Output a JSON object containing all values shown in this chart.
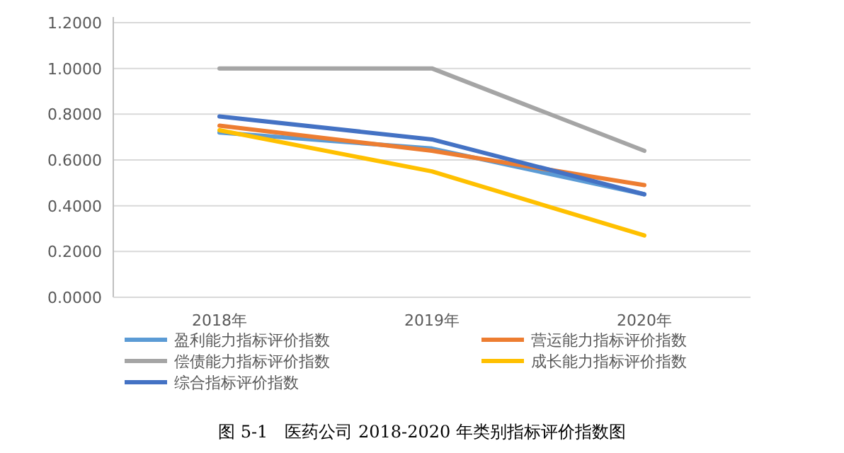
{
  "chart_data": {
    "type": "line",
    "categories": [
      "2018年",
      "2019年",
      "2020年"
    ],
    "series": [
      {
        "name": "盈利能力指标评价指数",
        "color": "#5b9bd5",
        "values": [
          0.72,
          0.65,
          0.45
        ]
      },
      {
        "name": "营运能力指标评价指数",
        "color": "#ed7d31",
        "values": [
          0.75,
          0.64,
          0.49
        ]
      },
      {
        "name": "偿债能力指标评价指数",
        "color": "#a5a5a5",
        "values": [
          1.0,
          1.0,
          0.64
        ]
      },
      {
        "name": "成长能力指标评价指数",
        "color": "#ffc000",
        "values": [
          0.73,
          0.55,
          0.27
        ]
      },
      {
        "name": "综合指标评价指数",
        "color": "#4472c4",
        "values": [
          0.79,
          0.69,
          0.45
        ]
      }
    ],
    "ylim": [
      0,
      1.2
    ],
    "yticks": [
      {
        "value": 0,
        "label": "0.0000"
      },
      {
        "value": 0.2,
        "label": "0.2000"
      },
      {
        "value": 0.4,
        "label": "0.4000"
      },
      {
        "value": 0.6,
        "label": "0.6000"
      },
      {
        "value": 0.8,
        "label": "0.8000"
      },
      {
        "value": 1.0,
        "label": "1.0000"
      },
      {
        "value": 1.2,
        "label": "1.2000"
      }
    ],
    "grid": "y",
    "legend": "bottom",
    "annotations": [
      "图 5-1　医药公司 2018-2020 年类别指标评价指数图"
    ]
  }
}
